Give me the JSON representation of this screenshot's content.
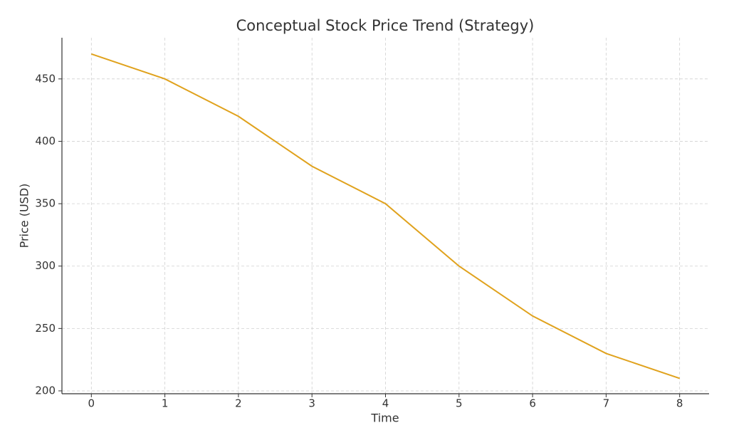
{
  "chart_data": {
    "type": "line",
    "title": "Conceptual Stock Price Trend (Strategy)",
    "x_label": "Time",
    "y_label": "Price (USD)",
    "x": [
      0,
      1,
      2,
      3,
      4,
      5,
      6,
      7,
      8
    ],
    "series": [
      {
        "name": "Price",
        "color": "#e0a21d",
        "values": [
          470,
          450,
          420,
          380,
          350,
          300,
          260,
          230,
          210
        ]
      }
    ],
    "xlim": [
      -0.4,
      8.4
    ],
    "xticks": [
      0,
      1,
      2,
      3,
      4,
      5,
      6,
      7,
      8
    ],
    "ylim": [
      197.7,
      483
    ],
    "yticks": [
      200,
      250,
      300,
      350,
      400,
      450
    ],
    "grid": true
  }
}
